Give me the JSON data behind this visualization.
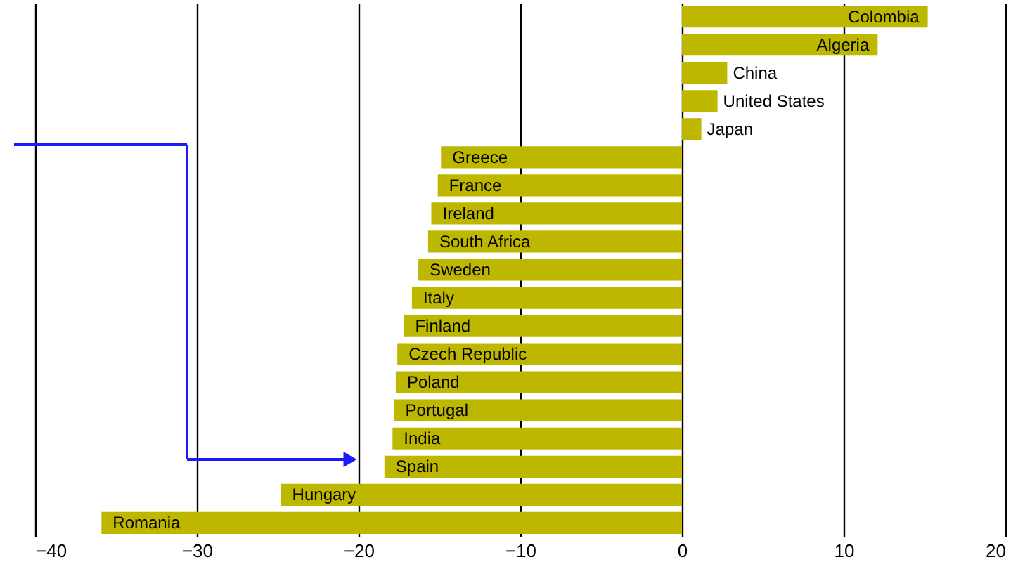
{
  "chart_data": {
    "type": "bar",
    "orientation": "horizontal",
    "categories": [
      "Colombia",
      "Algeria",
      "China",
      "United States",
      "Japan",
      "Greece",
      "France",
      "Ireland",
      "South Africa",
      "Sweden",
      "Italy",
      "Finland",
      "Czech Republic",
      "Poland",
      "Portugal",
      "India",
      "Spain",
      "Hungary",
      "Romania"
    ],
    "values": [
      15.2,
      12.1,
      2.8,
      2.2,
      1.2,
      -14.9,
      -15.1,
      -15.5,
      -15.7,
      -16.3,
      -16.7,
      -17.2,
      -17.6,
      -17.7,
      -17.8,
      -17.9,
      -18.4,
      -24.8,
      -35.9
    ],
    "color": "#bdb700",
    "xlim": [
      -40,
      20
    ],
    "xticks": [
      -40,
      -30,
      -20,
      -10,
      0,
      10,
      20
    ],
    "grid": "x",
    "tick_labels": "x"
  }
}
